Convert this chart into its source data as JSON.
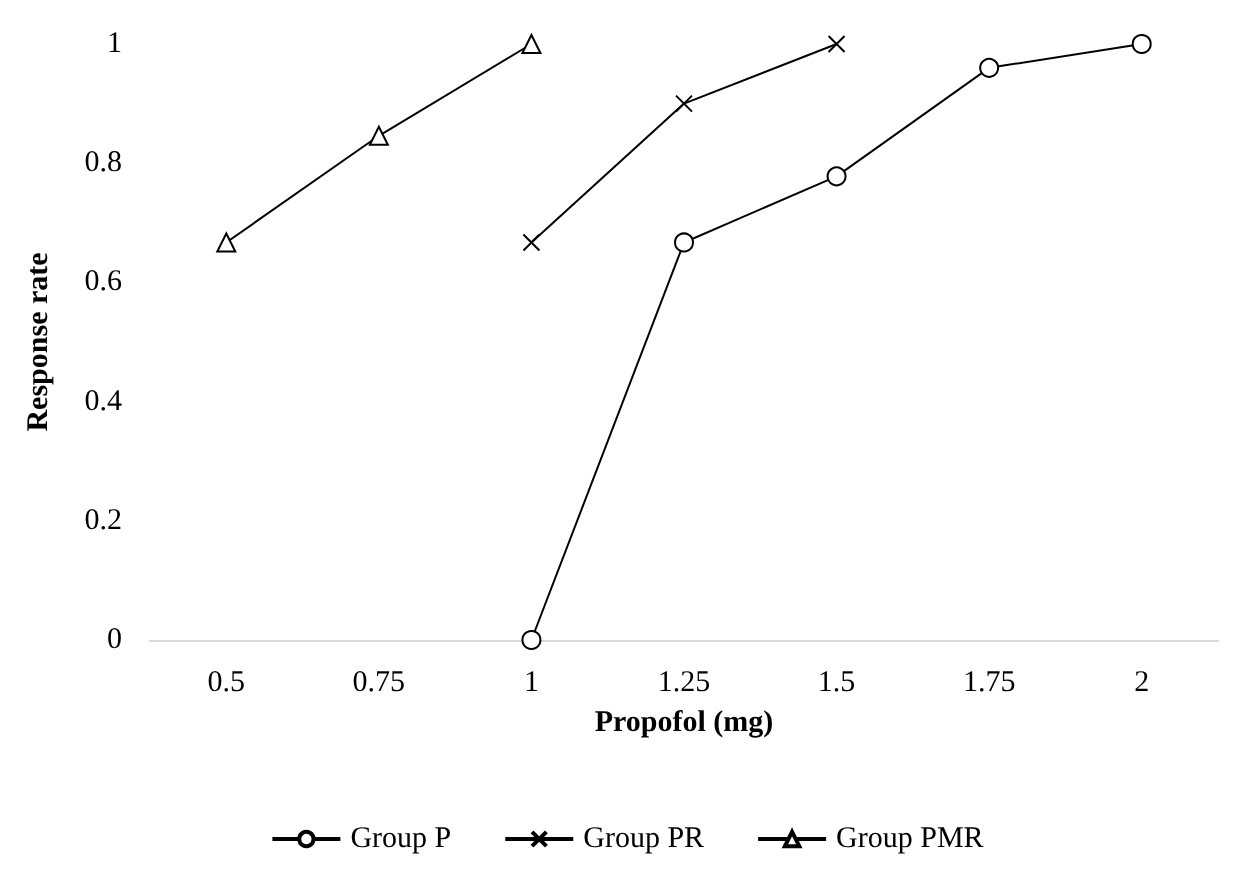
{
  "chart_data": {
    "type": "line",
    "xlabel": "Propofol (mg)",
    "ylabel": "Response rate",
    "categories": [
      "0.5",
      "0.75",
      "1",
      "1.25",
      "1.5",
      "1.75",
      "2"
    ],
    "series": [
      {
        "name": "Group P",
        "color": "#000000",
        "marker": "circle",
        "values": [
          null,
          null,
          0,
          0.667,
          0.778,
          0.96,
          1
        ]
      },
      {
        "name": "Group PR",
        "color": "#000000",
        "marker": "cross",
        "values": [
          null,
          null,
          0.667,
          0.9,
          1,
          null,
          null
        ]
      },
      {
        "name": "Group PMR",
        "color": "#000000",
        "marker": "triangle",
        "values": [
          0.667,
          0.846,
          1,
          null,
          null,
          null,
          null
        ]
      }
    ],
    "ylim": [
      0,
      1
    ],
    "yticks": [
      0,
      0.2,
      0.4,
      0.6,
      0.8,
      1
    ],
    "grid": false,
    "legend": "bottom",
    "line_style": "solid"
  }
}
